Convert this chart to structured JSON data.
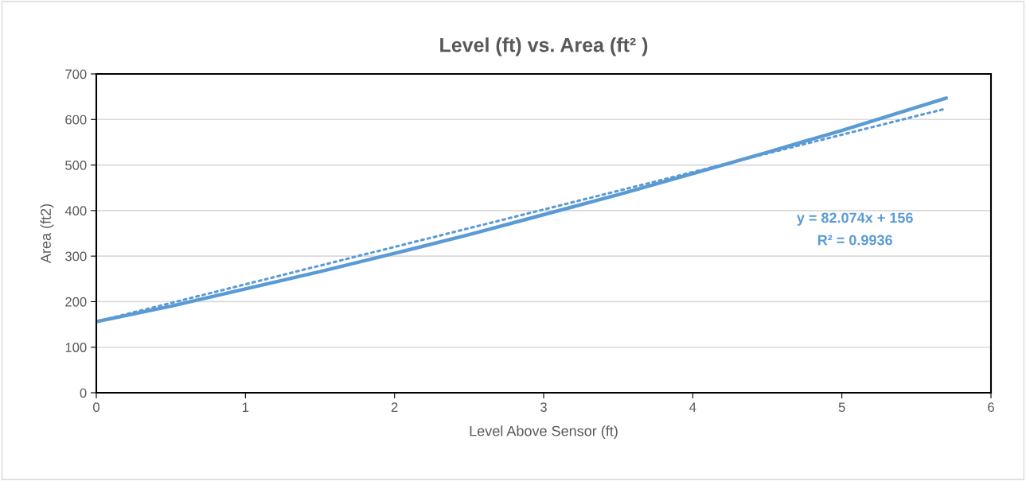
{
  "chart_data": {
    "type": "line",
    "title": "Level (ft) vs. Area (ft² )",
    "xlabel": "Level Above Sensor (ft)",
    "ylabel": "Area (ft2)",
    "x": [
      0,
      0.5,
      1,
      1.5,
      2,
      2.5,
      3,
      3.5,
      4,
      4.5,
      5,
      5.7
    ],
    "series": [
      {
        "color": "#5b9bd5",
        "values": [
          156,
          190,
          228,
          266,
          306,
          347,
          391,
          435,
          481,
          528,
          576,
          647
        ],
        "line_style": "solid"
      },
      {
        "type": "line",
        "x": [
          0,
          5.7
        ],
        "color": "#5b9bd5",
        "values": [
          156,
          624
        ],
        "line_style": "dotted"
      }
    ],
    "annotations": [
      "y = 82.074x + 156",
      "R² = 0.9936"
    ],
    "xlim": [
      0,
      6
    ],
    "xticks": [
      0,
      1,
      2,
      3,
      4,
      5,
      6
    ],
    "ylim": [
      0,
      700
    ],
    "yticks": [
      0,
      100,
      200,
      300,
      400,
      500,
      600,
      700
    ],
    "grid": "y",
    "legend": false,
    "marker": "none"
  }
}
